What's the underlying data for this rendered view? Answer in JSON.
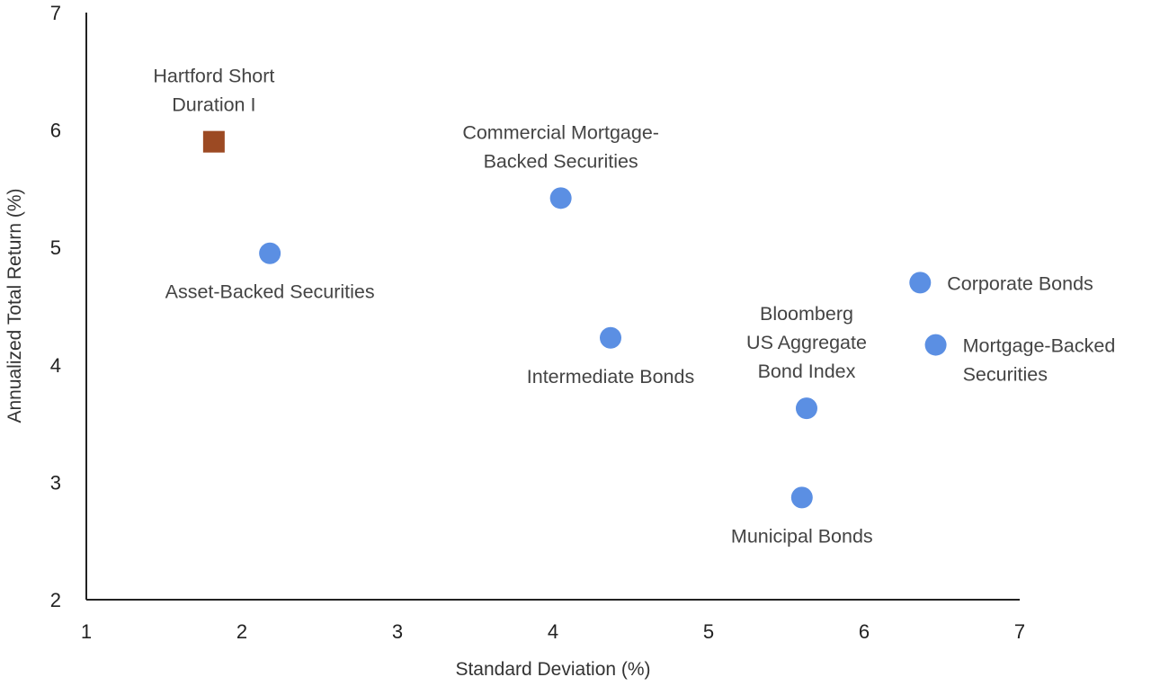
{
  "chart_data": {
    "type": "scatter",
    "title": "",
    "xlabel": "Standard Deviation (%)",
    "ylabel": "Annualized Total Return (%)",
    "xlim": [
      1,
      7
    ],
    "ylim": [
      2,
      7
    ],
    "x_ticks": [
      "1",
      "2",
      "3",
      "4",
      "5",
      "6",
      "7"
    ],
    "y_ticks": [
      "2",
      "3",
      "4",
      "5",
      "6",
      "7"
    ],
    "grid": false,
    "colors": {
      "highlight": "#9C4A23",
      "point": "#5B8FE3",
      "axis": "#222222"
    },
    "points": [
      {
        "label_lines": [
          "Hartford Short",
          "Duration I"
        ],
        "x": 1.82,
        "y": 5.9,
        "marker": "square",
        "label_pos": "above"
      },
      {
        "label_lines": [
          "Asset-Backed Securities"
        ],
        "x": 2.18,
        "y": 4.95,
        "marker": "circle",
        "label_pos": "below"
      },
      {
        "label_lines": [
          "Commercial Mortgage-",
          "Backed Securities"
        ],
        "x": 4.05,
        "y": 5.42,
        "marker": "circle",
        "label_pos": "above"
      },
      {
        "label_lines": [
          "Intermediate Bonds"
        ],
        "x": 4.37,
        "y": 4.23,
        "marker": "circle",
        "label_pos": "below"
      },
      {
        "label_lines": [
          "Bloomberg",
          "US Aggregate",
          "Bond Index"
        ],
        "x": 5.63,
        "y": 3.63,
        "marker": "circle",
        "label_pos": "above"
      },
      {
        "label_lines": [
          "Municipal Bonds"
        ],
        "x": 5.6,
        "y": 2.87,
        "marker": "circle",
        "label_pos": "below"
      },
      {
        "label_lines": [
          "Corporate Bonds"
        ],
        "x": 6.36,
        "y": 4.7,
        "marker": "circle",
        "label_pos": "right"
      },
      {
        "label_lines": [
          "Mortgage-Backed",
          "Securities"
        ],
        "x": 6.46,
        "y": 4.17,
        "marker": "circle",
        "label_pos": "right"
      }
    ]
  }
}
